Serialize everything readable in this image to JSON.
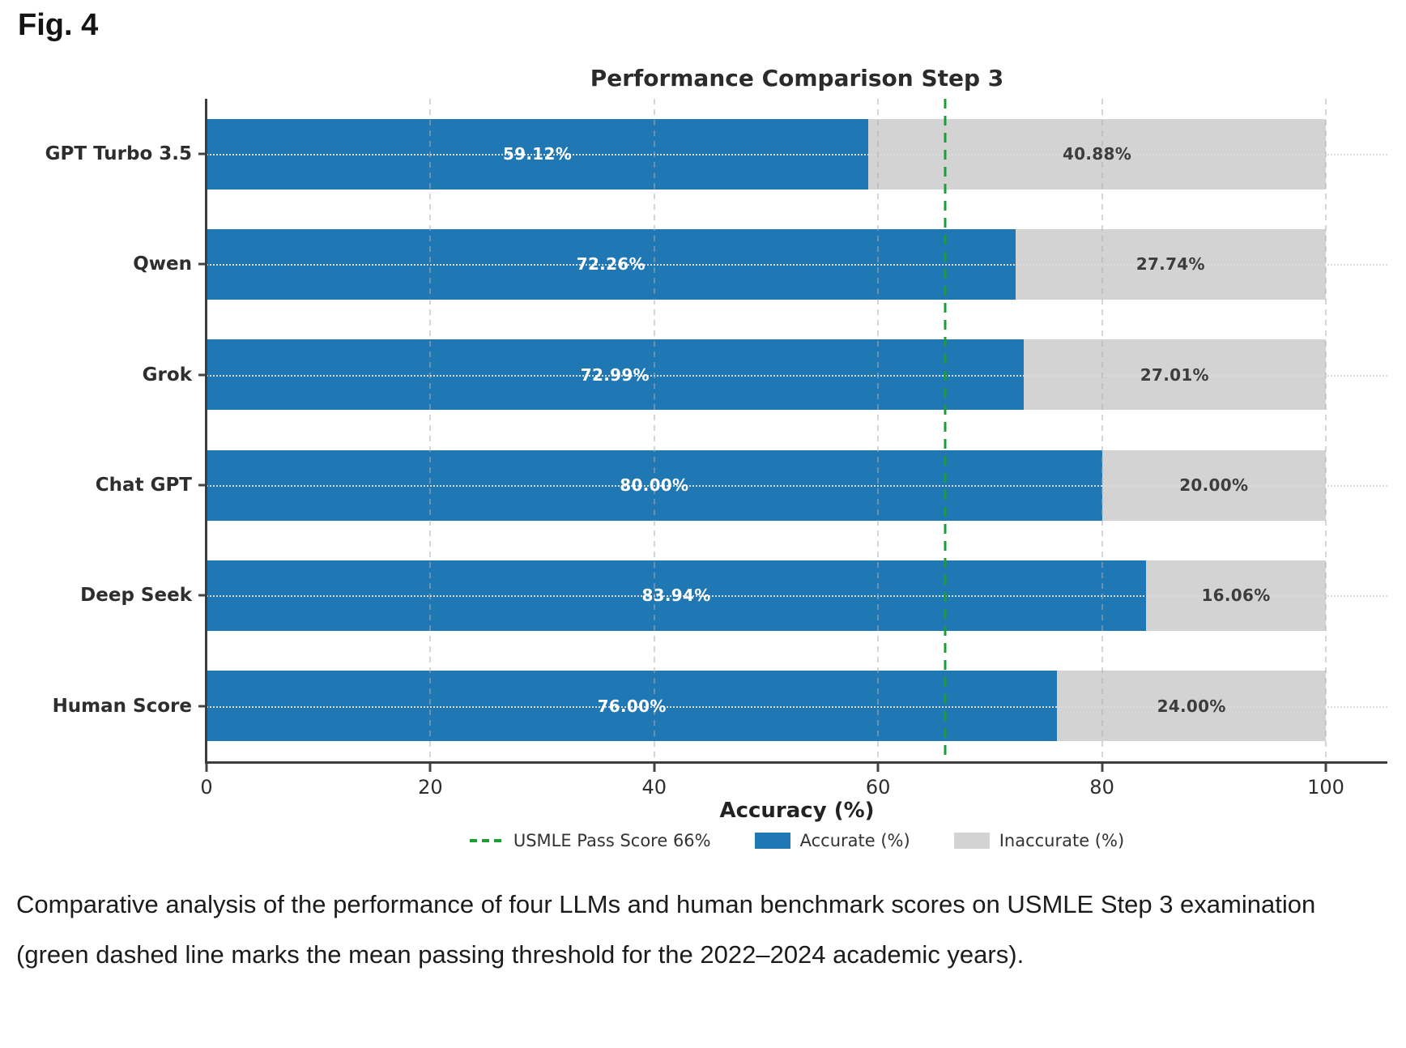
{
  "figure_label": "Fig. 4",
  "caption": "Comparative analysis of the performance of four LLMs and human benchmark scores on USMLE Step 3 examination (green dashed line marks the mean passing threshold for the 2022–2024 academic years).",
  "chart_data": {
    "type": "bar",
    "orientation": "horizontal-stacked",
    "title": "Performance Comparison Step 3",
    "xlabel": "Accuracy (%)",
    "categories": [
      "GPT Turbo 3.5",
      "Qwen",
      "Grok",
      "Chat GPT",
      "Deep Seek",
      "Human Score"
    ],
    "series": [
      {
        "name": "Accurate (%)",
        "color": "#1f77b4",
        "values": [
          59.12,
          72.26,
          72.99,
          80.0,
          83.94,
          76.0
        ],
        "labels": [
          "59.12%",
          "72.26%",
          "72.99%",
          "80.00%",
          "83.94%",
          "76.00%"
        ]
      },
      {
        "name": "Inaccurate (%)",
        "color": "#d3d3d3",
        "values": [
          40.88,
          27.74,
          27.01,
          20.0,
          16.06,
          24.0
        ],
        "labels": [
          "40.88%",
          "27.74%",
          "27.01%",
          "20.00%",
          "16.06%",
          "24.00%"
        ]
      }
    ],
    "threshold": {
      "value": 66,
      "label": "USMLE Pass Score 66%",
      "color": "#1d9e34",
      "style": "dashed"
    },
    "xlim": [
      0,
      105.5
    ],
    "xticks": [
      0,
      20,
      40,
      60,
      80,
      100
    ],
    "grid": true,
    "legend_position": "bottom"
  }
}
